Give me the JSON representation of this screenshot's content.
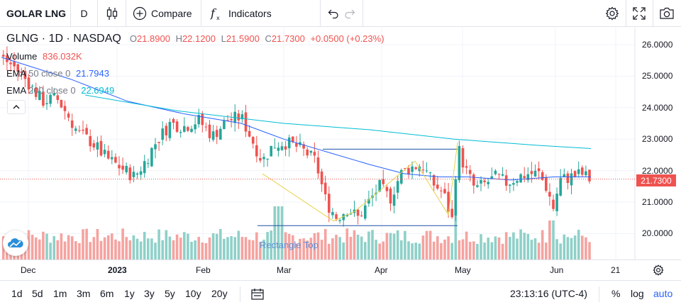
{
  "toolbar": {
    "symbol": "GOLAR LNG",
    "interval": "D",
    "compare_label": "Compare",
    "indicators_label": "Indicators",
    "icons": [
      "candles-icon",
      "compare-plus-icon",
      "indicators-fx-icon",
      "undo-icon",
      "redo-icon",
      "settings-gear-icon",
      "fullscreen-icon",
      "camera-icon"
    ]
  },
  "legend": {
    "title": "GLNG · 1D · NASDAQ",
    "o_label": "O",
    "o": "21.8900",
    "h_label": "H",
    "h": "22.1200",
    "l_label": "L",
    "l": "21.5900",
    "c_label": "C",
    "c": "21.7300",
    "change": "+0.0500 (+0.23%)",
    "volume_label": "Volume",
    "volume_value": "836.032K",
    "ema50_label": "EMA",
    "ema50_params": "50 close 0",
    "ema50_value": "21.7943",
    "ema200_label": "EMA",
    "ema200_params": "200 close 0",
    "ema200_value": "22.6949",
    "colors": {
      "up": "#26a69a",
      "down": "#ef5350",
      "ema50": "#2962ff",
      "ema200": "#00bcd4"
    }
  },
  "price_axis": {
    "labels": [
      "26.0000",
      "25.0000",
      "24.0000",
      "23.0000",
      "22.0000",
      "21.0000",
      "20.0000"
    ],
    "last_price": "21.7300"
  },
  "time_axis": {
    "labels": [
      "Dec",
      "2023",
      "Feb",
      "Mar",
      "Apr",
      "May",
      "Jun",
      "21"
    ]
  },
  "drawing": {
    "rectangle_label": "Rectangle Top"
  },
  "bottom": {
    "ranges": [
      "1d",
      "5d",
      "1m",
      "3m",
      "6m",
      "1y",
      "3y",
      "5y",
      "10y",
      "20y"
    ],
    "clock": "23:13:16 (UTC-4)",
    "percent": "%",
    "log": "log",
    "auto": "auto"
  },
  "chart_data": {
    "type": "candlestick",
    "y_range": [
      19.2,
      26.5
    ],
    "scale": "linear",
    "grid": true,
    "last_price": 21.73,
    "series": [
      {
        "name": "EMA 50 close 0",
        "last": 21.7943
      },
      {
        "name": "EMA 200 close 0",
        "last": 22.6949
      }
    ],
    "x_labels": [
      "Dec",
      "2023",
      "Feb",
      "Mar",
      "Apr",
      "May",
      "Jun",
      "21"
    ]
  }
}
